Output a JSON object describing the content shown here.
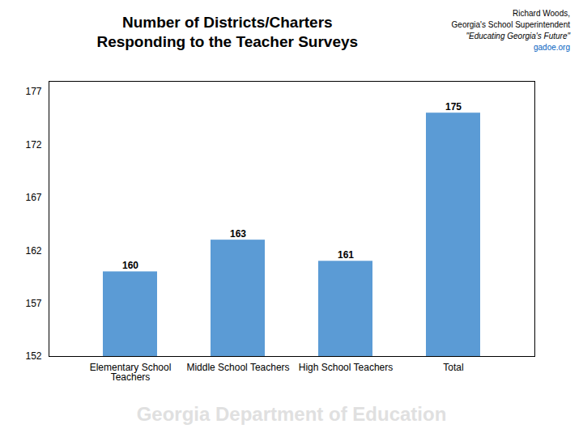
{
  "chart_data": {
    "type": "bar",
    "title": "Number of Districts/Charters\nResponding to the Teacher Surveys",
    "categories": [
      "Elementary School\nTeachers",
      "Middle School Teachers",
      "High School Teachers",
      "Total"
    ],
    "values": [
      160,
      163,
      161,
      175
    ],
    "color": "#5B9BD5",
    "ylim": [
      152,
      178
    ],
    "yticks": [
      152,
      157,
      162,
      167,
      172,
      177
    ],
    "grid": false,
    "data_labels": true,
    "annotations": [
      "Richard Woods,",
      "Georgia's School Superintendent",
      "\"Educating Georgia's Future\"",
      "gadoe.org",
      "Georgia Department of Education"
    ]
  }
}
